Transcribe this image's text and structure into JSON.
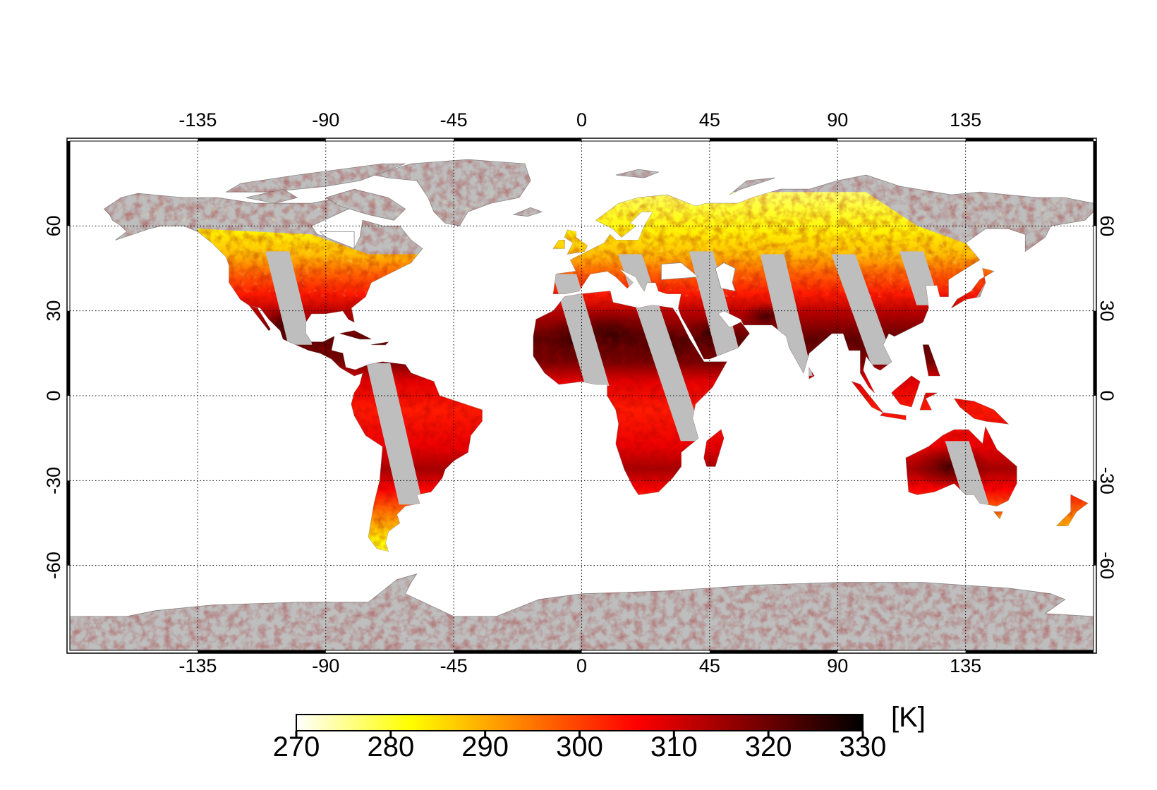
{
  "chart_data": {
    "type": "map",
    "projection": "equirectangular",
    "lon_range": [
      -180,
      180
    ],
    "lat_range": [
      -90,
      90
    ],
    "lon_ticks": [
      -135,
      -90,
      -45,
      0,
      45,
      90,
      135
    ],
    "lon_tick_labels": [
      "-135",
      "-90",
      "-45",
      "0",
      "45",
      "90",
      "135"
    ],
    "lat_ticks": [
      -60,
      -30,
      0,
      30,
      60
    ],
    "lat_tick_labels": [
      "-60",
      "-30",
      "0",
      "30",
      "60"
    ],
    "grid": true,
    "grid_style": "dotted",
    "ocean_color": "#ffffff",
    "no_data_land_color": "#bebebe",
    "colorbar": {
      "orientation": "horizontal",
      "placement": "bottom",
      "unit": "[K]",
      "min": 270,
      "max": 330,
      "ticks": [
        270,
        280,
        290,
        300,
        310,
        320,
        330
      ],
      "tick_labels": [
        "270",
        "280",
        "290",
        "300",
        "310",
        "320",
        "330"
      ],
      "colors": [
        "#ffffff",
        "#ffff80",
        "#ffff00",
        "#ffc000",
        "#ff8000",
        "#ff4000",
        "#ff0000",
        "#c00000",
        "#800000",
        "#400000",
        "#000000"
      ]
    }
  }
}
